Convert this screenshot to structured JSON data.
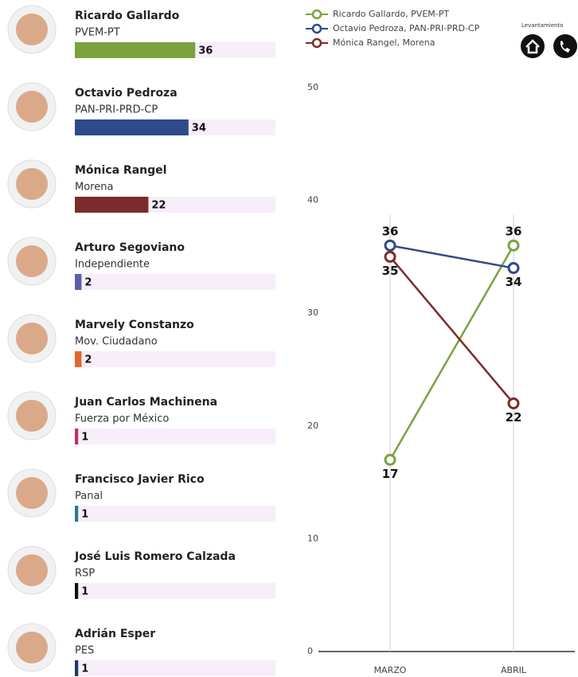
{
  "header": {
    "label": "Levantamiento"
  },
  "candidates": [
    {
      "name": "Ricardo Gallardo",
      "party": "PVEM-PT",
      "value": 36,
      "color": "#7aa33f"
    },
    {
      "name": "Octavio Pedroza",
      "party": "PAN-PRI-PRD-CP",
      "value": 34,
      "color": "#2e4a8a"
    },
    {
      "name": "Mónica Rangel",
      "party": "Morena",
      "value": 22,
      "color": "#7b2b2b"
    },
    {
      "name": "Arturo Segoviano",
      "party": "Independiente",
      "value": 2,
      "color": "#5a5fb0"
    },
    {
      "name": "Marvely Constanzo",
      "party": "Mov. Ciudadano",
      "value": 2,
      "color": "#e06a2a"
    },
    {
      "name": "Juan Carlos Machinena",
      "party": "Fuerza por México",
      "value": 1,
      "color": "#c0306a"
    },
    {
      "name": "Francisco Javier Rico",
      "party": "Panal",
      "value": 1,
      "color": "#2a7a8a"
    },
    {
      "name": "José Luis Romero Calzada",
      "party": "RSP",
      "value": 1,
      "color": "#111111"
    },
    {
      "name": "Adrián Esper",
      "party": "PES",
      "value": 1,
      "color": "#1a3a6a"
    }
  ],
  "chart_data": {
    "type": "line",
    "categories": [
      "MARZO",
      "ABRIL"
    ],
    "series": [
      {
        "name": "Ricardo Gallardo, PVEM-PT",
        "color": "#7aa33f",
        "values": [
          17,
          36
        ]
      },
      {
        "name": "Octavio Pedroza, PAN-PRI-PRD-CP",
        "color": "#2e4a8a",
        "values": [
          36,
          34
        ]
      },
      {
        "name": "Mónica Rangel, Morena",
        "color": "#7b2b2b",
        "values": [
          35,
          22
        ]
      }
    ],
    "ylim": [
      0,
      50
    ],
    "yticks": [
      0,
      10,
      20,
      30,
      40,
      50
    ]
  }
}
